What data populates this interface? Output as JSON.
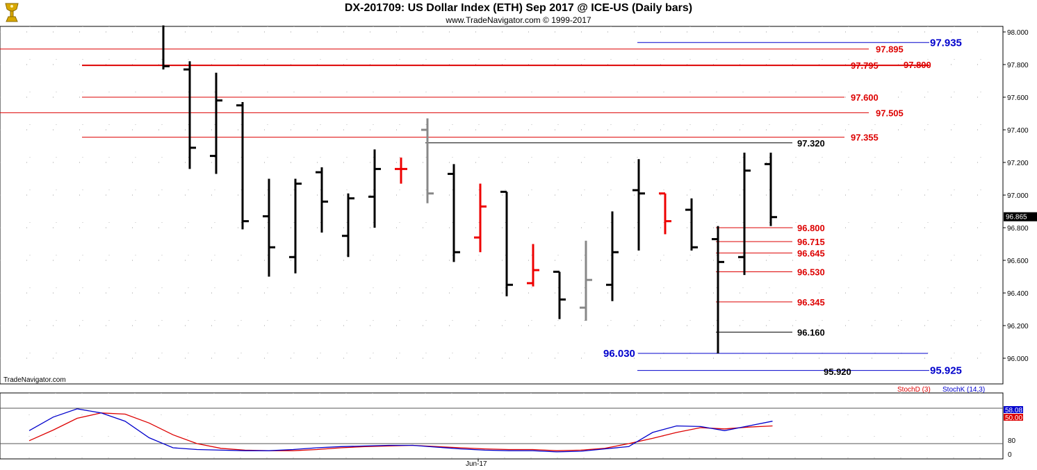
{
  "header": {
    "title": "DX-201709:  US Dollar Index (ETH) Sep 2017 @ ICE-US  (Daily bars)",
    "subtitle": "www.TradeNavigator.com © 1999-2017",
    "logo_icon": "gold-trophy-icon"
  },
  "watermark": "TradeNavigator.com",
  "colors": {
    "up": "#00cc00",
    "down": "#ee0000",
    "neutral": "#000000",
    "gray": "#888888",
    "level_red": "#dd0000",
    "level_blue": "#0000cc",
    "stoch_d": "#dd0000",
    "stoch_k": "#0000cc"
  },
  "price_axis": {
    "min": 95.9,
    "max": 98.04,
    "ticks": [
      "98.000",
      "97.800",
      "97.600",
      "97.400",
      "97.200",
      "97.000",
      "96.800",
      "96.600",
      "96.400",
      "96.200",
      "96.000"
    ],
    "last_price": "96.865"
  },
  "date_axis": {
    "label": "Jun-17",
    "label_bar_index": 17
  },
  "chart_data": {
    "type": "ohlc",
    "title": "DX-201709:  US Dollar Index (ETH) Sep 2017 @ ICE-US  (Daily bars)",
    "bars": [
      {
        "open": null,
        "high": 98.04,
        "low": 97.77,
        "close": 97.79,
        "color": "neutral"
      },
      {
        "open": 97.77,
        "high": 97.82,
        "low": 97.16,
        "close": 97.29,
        "color": "neutral"
      },
      {
        "open": 97.24,
        "high": 97.75,
        "low": 97.13,
        "close": 97.58,
        "color": "neutral"
      },
      {
        "open": 97.55,
        "high": 97.57,
        "low": 96.79,
        "close": 96.84,
        "color": "neutral"
      },
      {
        "open": 96.87,
        "high": 97.1,
        "low": 96.5,
        "close": 96.68,
        "color": "neutral"
      },
      {
        "open": 96.62,
        "high": 97.1,
        "low": 96.52,
        "close": 97.07,
        "color": "neutral"
      },
      {
        "open": 97.14,
        "high": 97.17,
        "low": 96.77,
        "close": 96.96,
        "color": "neutral"
      },
      {
        "open": 96.75,
        "high": 97.01,
        "low": 96.62,
        "close": 96.98,
        "color": "neutral"
      },
      {
        "open": 96.99,
        "high": 97.28,
        "low": 96.8,
        "close": 97.16,
        "color": "neutral"
      },
      {
        "open": 97.16,
        "high": 97.23,
        "low": 97.07,
        "close": 97.16,
        "color": "down"
      },
      {
        "open": 97.4,
        "high": 97.47,
        "low": 96.95,
        "close": 97.01,
        "color": "gray"
      },
      {
        "open": 97.13,
        "high": 97.19,
        "low": 96.59,
        "close": 96.65,
        "color": "neutral"
      },
      {
        "open": 96.74,
        "high": 97.07,
        "low": 96.65,
        "close": 96.93,
        "color": "down"
      },
      {
        "open": 97.02,
        "high": 97.02,
        "low": 96.38,
        "close": 96.45,
        "color": "neutral"
      },
      {
        "open": 96.46,
        "high": 96.7,
        "low": 96.44,
        "close": 96.54,
        "color": "down"
      },
      {
        "open": 96.53,
        "high": 96.53,
        "low": 96.24,
        "close": 96.36,
        "color": "neutral"
      },
      {
        "open": 96.31,
        "high": 96.72,
        "low": 96.23,
        "close": 96.48,
        "color": "gray"
      },
      {
        "open": 96.45,
        "high": 96.9,
        "low": 96.35,
        "close": 96.65,
        "color": "neutral"
      },
      {
        "open": 97.03,
        "high": 97.22,
        "low": 96.66,
        "close": 97.01,
        "color": "neutral"
      },
      {
        "open": 97.01,
        "high": 97.01,
        "low": 96.76,
        "close": 96.84,
        "color": "down"
      },
      {
        "open": 96.91,
        "high": 96.98,
        "low": 96.66,
        "close": 96.68,
        "color": "neutral"
      },
      {
        "open": 96.73,
        "high": 96.81,
        "low": 96.03,
        "close": 96.59,
        "color": "neutral"
      },
      {
        "open": 96.62,
        "high": 97.26,
        "low": 96.51,
        "close": 97.15,
        "color": "neutral"
      },
      {
        "open": 97.19,
        "high": 97.26,
        "low": 96.81,
        "close": 96.865,
        "color": "neutral"
      }
    ],
    "levels": [
      {
        "value": 97.935,
        "label": "97.935",
        "color": "blue"
      },
      {
        "value": 97.895,
        "label": "97.895",
        "color": "red"
      },
      {
        "value": 97.8,
        "label": "97.800",
        "color": "red"
      },
      {
        "value": 97.795,
        "label": "97.795",
        "color": "red"
      },
      {
        "value": 97.6,
        "label": "97.600",
        "color": "red"
      },
      {
        "value": 97.505,
        "label": "97.505",
        "color": "red"
      },
      {
        "value": 97.355,
        "label": "97.355",
        "color": "red"
      },
      {
        "value": 97.32,
        "label": "97.320",
        "color": "black"
      },
      {
        "value": 96.8,
        "label": "96.800",
        "color": "red"
      },
      {
        "value": 96.715,
        "label": "96.715",
        "color": "red"
      },
      {
        "value": 96.645,
        "label": "96.645",
        "color": "red"
      },
      {
        "value": 96.53,
        "label": "96.530",
        "color": "red"
      },
      {
        "value": 96.345,
        "label": "96.345",
        "color": "red"
      },
      {
        "value": 96.16,
        "label": "96.160",
        "color": "black"
      },
      {
        "value": 96.03,
        "label": "96.030",
        "color": "blue"
      },
      {
        "value": 95.925,
        "label": "95.925",
        "color": "blue"
      },
      {
        "value": 95.92,
        "label": "95.920",
        "color": "black"
      }
    ],
    "stochastic": {
      "legend_d": "StochD (3)",
      "legend_k": "StochK (14,3)",
      "d_value": "50.00",
      "k_value": "58.08",
      "ylim": [
        0,
        100
      ],
      "ticks": [
        "80",
        "0"
      ],
      "d": [
        25,
        43,
        63,
        72,
        70,
        55,
        35,
        20,
        12,
        9,
        8,
        8,
        10,
        13,
        15,
        16,
        17,
        15,
        13,
        11,
        10,
        10,
        8,
        9,
        12,
        20,
        29,
        39,
        47,
        45,
        48,
        50
      ],
      "k": [
        42,
        65,
        79,
        72,
        58,
        30,
        13,
        10,
        9,
        8,
        8,
        10,
        13,
        15,
        16,
        17,
        17,
        14,
        11,
        9,
        8,
        8,
        6,
        7,
        11,
        15,
        39,
        50,
        49,
        42,
        50,
        58
      ]
    }
  }
}
